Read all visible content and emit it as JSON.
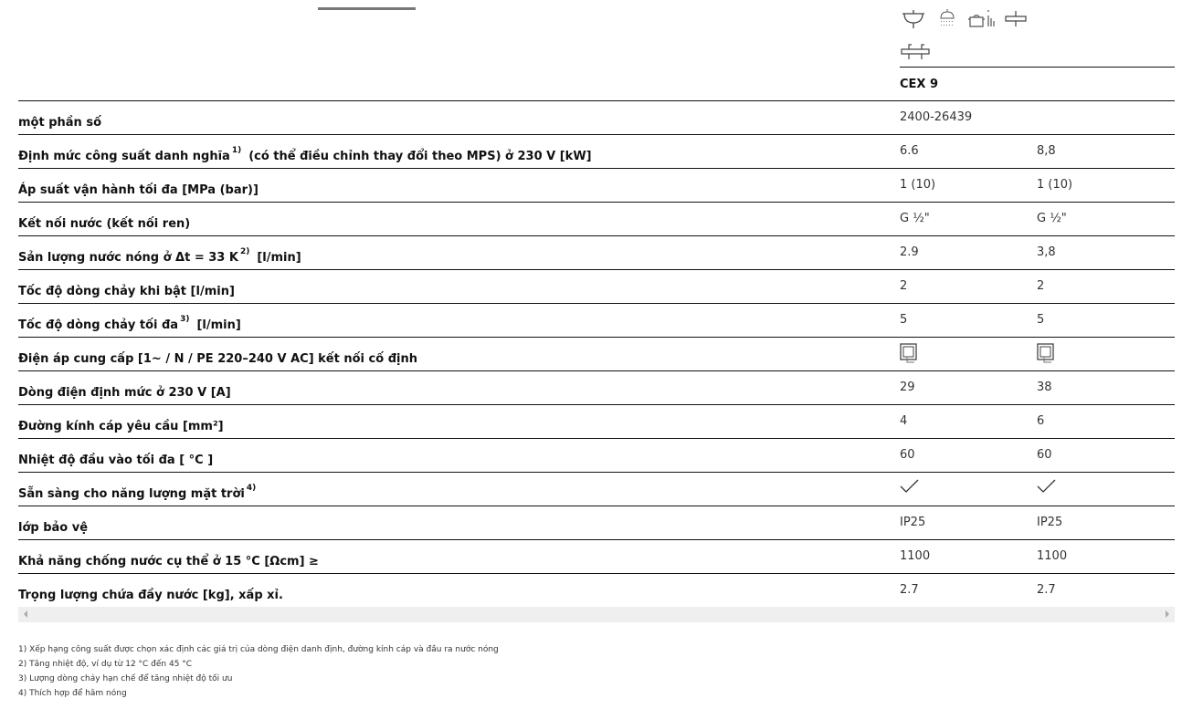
{
  "header": {
    "icons": [
      "washbasin-icon",
      "shower-icon",
      "kitchen-pot-icon",
      "sink-icon",
      "double-sink-icon"
    ],
    "model": "CEX 9"
  },
  "rows": [
    {
      "label": "một phần số",
      "sup": "",
      "post": "",
      "v1": "2400-26439",
      "v2": ""
    },
    {
      "label": "Định mức công suất danh nghĩa",
      "sup": "1)",
      "post": "(có thể điều chỉnh thay đổi theo MPS) ở 230 V [kW]",
      "v1": "6.6",
      "v2": "8,8"
    },
    {
      "label": "Áp suất vận hành tối đa [MPa (bar)]",
      "sup": "",
      "post": "",
      "v1": "1 (10)",
      "v2": "1 (10)"
    },
    {
      "label": "Kết nối nước (kết nối ren)",
      "sup": "",
      "post": "",
      "v1": "G ½\"",
      "v2": "G ½\""
    },
    {
      "label": "Sản lượng nước nóng ở Δt = 33 K",
      "sup": "2)",
      "post": "[l/min]",
      "v1": "2.9",
      "v2": "3,8"
    },
    {
      "label": "Tốc độ dòng chảy khi bật [l/min]",
      "sup": "",
      "post": "",
      "v1": "2",
      "v2": "2"
    },
    {
      "label": "Tốc độ dòng chảy tối đa",
      "sup": "3)",
      "post": "[l/min]",
      "v1": "5",
      "v2": "5"
    },
    {
      "label": "Điện áp cung cấp [1~ / N / PE 220–240 V AC] kết nối cố định",
      "sup": "",
      "post": "",
      "v1": "",
      "v2": "",
      "icon": "fixed-connection-icon"
    },
    {
      "label": "Dòng điện định mức ở 230 V [A]",
      "sup": "",
      "post": "",
      "v1": "29",
      "v2": "38"
    },
    {
      "label": "Đường kính cáp yêu cầu [mm²]",
      "sup": "",
      "post": "",
      "v1": "4",
      "v2": "6"
    },
    {
      "label": "Nhiệt độ đầu vào tối đa [ °C ]",
      "sup": "",
      "post": "",
      "v1": "60",
      "v2": "60"
    },
    {
      "label": "Sẵn sàng cho năng lượng mặt trời",
      "sup": "4)",
      "post": "",
      "v1": "",
      "v2": "",
      "icon": "checkmark-icon"
    },
    {
      "label": "lớp bảo vệ",
      "sup": "",
      "post": "",
      "v1": "IP25",
      "v2": "IP25"
    },
    {
      "label": "Khả năng chống nước cụ thể ở 15 °C [Ωcm] ≥",
      "sup": "",
      "post": "",
      "v1": "1100",
      "v2": "1100"
    },
    {
      "label": "Trọng lượng chứa đầy nước [kg], xấp xỉ.",
      "sup": "",
      "post": "",
      "v1": "2.7",
      "v2": "2.7"
    }
  ],
  "footnotes": [
    "1) Xếp hạng công suất được chọn xác định các giá trị của dòng điện danh định, đường kính cáp và đầu ra nước nóng",
    "2) Tăng nhiệt độ, ví dụ từ 12 °C đến 45 °C",
    "3) Lượng dòng chảy hạn chế để tăng nhiệt độ tối ưu",
    "4) Thích hợp để hâm nóng"
  ]
}
